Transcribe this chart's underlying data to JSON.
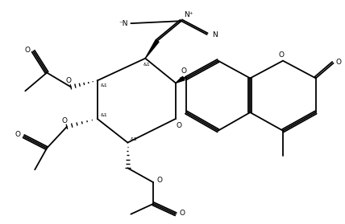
{
  "bg_color": "#ffffff",
  "line_color": "#000000",
  "lw": 1.3,
  "fs": 6.5,
  "figsize": [
    4.28,
    2.79
  ],
  "dpi": 100,
  "xlim": [
    0,
    10
  ],
  "ylim": [
    0,
    6.5
  ]
}
